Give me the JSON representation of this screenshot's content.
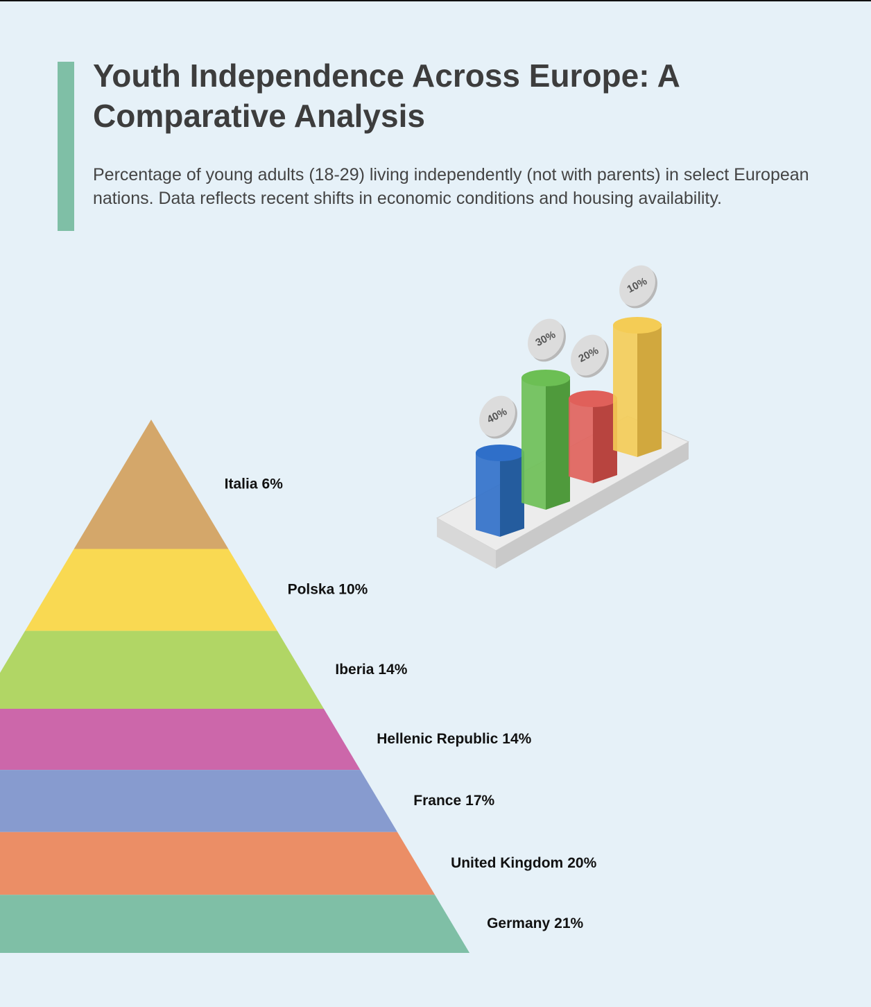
{
  "chart_data": {
    "type": "pyramid",
    "title": "Youth Independence Across Europe: A Comparative Analysis",
    "subtitle": "Percentage of young adults (18-29) living independently (not with parents) in select European nations. Data reflects recent shifts in economic conditions and housing availability.",
    "categories": [
      "Italia",
      "Polska",
      "Iberia",
      "Hellenic Republic",
      "France",
      "United Kingdom",
      "Germany"
    ],
    "values": [
      6,
      10,
      14,
      14,
      17,
      20,
      21
    ],
    "value_labels": [
      "6%",
      "10%",
      "14%",
      "14%",
      "17%",
      "20%",
      "21%"
    ],
    "colors": [
      "#d4a76a",
      "#f9d952",
      "#b1d665",
      "#cc67aa",
      "#879bcf",
      "#eb8e66",
      "#7fbfa6"
    ]
  },
  "illustration": {
    "badges": [
      "40%",
      "30%",
      "20%",
      "10%"
    ]
  }
}
